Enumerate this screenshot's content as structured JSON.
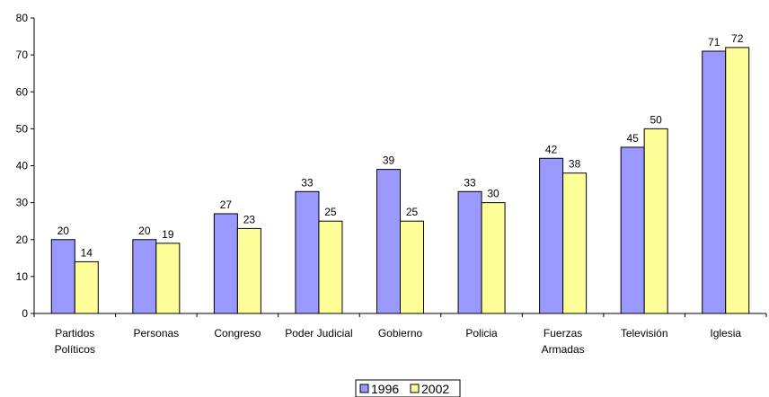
{
  "chart_data": {
    "type": "bar",
    "title": "",
    "xlabel": "",
    "ylabel": "",
    "ylim": [
      0,
      80
    ],
    "yticks": [
      0,
      10,
      20,
      30,
      40,
      50,
      60,
      70,
      80
    ],
    "grid": false,
    "legend_position": "bottom",
    "categories": [
      [
        "Partidos",
        "Políticos"
      ],
      [
        "Personas"
      ],
      [
        "Congreso"
      ],
      [
        "Poder Judicial"
      ],
      [
        "Gobierno"
      ],
      [
        "Policia"
      ],
      [
        "Fuerzas",
        "Armadas"
      ],
      [
        "Televisión"
      ],
      [
        "Iglesia"
      ]
    ],
    "series": [
      {
        "name": "1996",
        "color": "#9999ff",
        "values": [
          20,
          20,
          27,
          33,
          39,
          33,
          42,
          45,
          71
        ]
      },
      {
        "name": "2002",
        "color": "#ffff99",
        "values": [
          14,
          19,
          23,
          25,
          25,
          30,
          38,
          50,
          72
        ]
      }
    ]
  }
}
